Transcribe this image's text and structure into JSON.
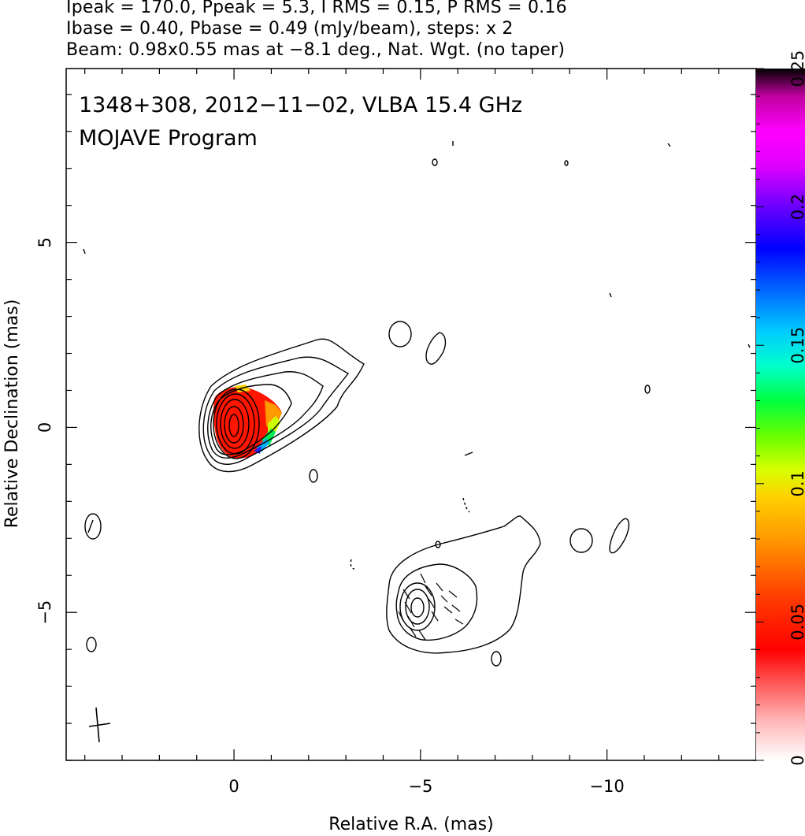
{
  "header": {
    "line1": "Ipeak = 170.0, Ppeak = 5.3, I RMS = 0.15, P RMS = 0.16",
    "line2": "Ibase = 0.40, Pbase = 0.49 (mJy/beam), steps: x 2",
    "line3": "Beam: 0.98x0.55 mas at −8.1 deg., Nat. Wgt. (no taper)"
  },
  "annotation": {
    "line1": "1348+308, 2012−11−02, VLBA 15.4 GHz",
    "line2": "MOJAVE Program"
  },
  "chart_data": {
    "type": "heatmap",
    "xlabel": "Relative R.A. (mas)",
    "ylabel": "Relative Declination (mas)",
    "xlim": [
      4.5,
      -14
    ],
    "ylim": [
      -9,
      9.7
    ],
    "x_ticks": [
      0,
      -5,
      -10
    ],
    "x_tick_labels": [
      "0",
      "−5",
      "−10"
    ],
    "y_ticks": [
      5,
      0,
      -5
    ],
    "y_tick_labels": [
      "5",
      "0",
      "−5"
    ],
    "colorbar": {
      "range": [
        0,
        0.25
      ],
      "ticks": [
        0,
        0.05,
        0.1,
        0.15,
        0.2,
        0.25
      ],
      "tick_labels": [
        "0",
        "0.05",
        "0.1",
        "0.15",
        "0.2",
        "0.25"
      ]
    },
    "contour_base_mJy_per_beam": 0.4,
    "contour_step_factor": 2,
    "peak_mJy_per_beam": 170.0,
    "core": {
      "x": 0.0,
      "y": 0.0
    },
    "secondary_component": {
      "x": -5.0,
      "y": -5.0
    },
    "beam": {
      "major": 0.98,
      "minor": 0.55,
      "pa_deg": -8.1
    }
  }
}
